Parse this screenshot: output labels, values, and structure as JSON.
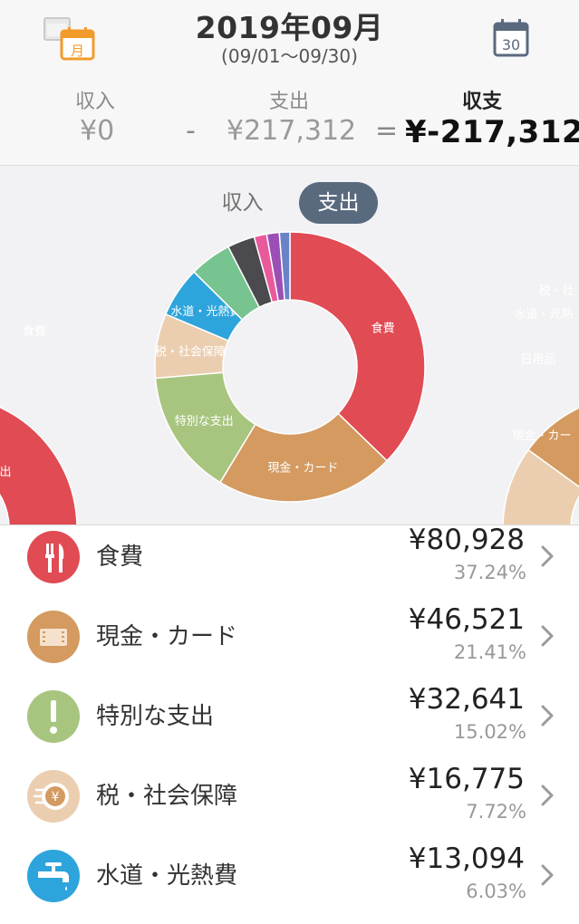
{
  "header": {
    "title": "2019年09月",
    "range": "(09/01〜09/30)",
    "month_icon_label": "月",
    "day_icon_label": "30"
  },
  "summary": {
    "income_label": "収入",
    "income_value": "¥0",
    "minus": "-",
    "expense_label": "支出",
    "expense_value": "¥217,312",
    "equals": "=",
    "balance_label": "収支",
    "balance_value": "¥-217,312"
  },
  "toggle": {
    "income": "収入",
    "expense": "支出"
  },
  "chart_data": {
    "type": "pie",
    "donut": true,
    "categories": [
      "食費",
      "現金・カード",
      "特別な支出",
      "税・社会保障",
      "水道・光熱費"
    ],
    "values": [
      80928,
      46521,
      32641,
      16775,
      13094
    ],
    "percentages": [
      37.24,
      21.41,
      15.02,
      7.72,
      6.03
    ],
    "colors": [
      "#e04b54",
      "#d49a60",
      "#a7c57e",
      "#ebceb0",
      "#2ea4dc"
    ],
    "other_slice_colors": [
      "#78c491",
      "#4a4a4f",
      "#e85a9b",
      "#9b4fb5",
      "#6b82c7"
    ],
    "side_labels_left": [
      "食費",
      "出"
    ],
    "side_labels_right": [
      "税・社",
      "水道・光熱",
      "日用品",
      "現金・カー"
    ]
  },
  "list": {
    "items": [
      {
        "name": "食費",
        "amount": "¥80,928",
        "percent": "37.24%",
        "color": "#e04b54",
        "icon": "fork-knife-icon"
      },
      {
        "name": "現金・カード",
        "amount": "¥46,521",
        "percent": "21.41%",
        "color": "#d49a60",
        "icon": "film-card-icon"
      },
      {
        "name": "特別な支出",
        "amount": "¥32,641",
        "percent": "15.02%",
        "color": "#a7c57e",
        "icon": "exclamation-icon"
      },
      {
        "name": "税・社会保障",
        "amount": "¥16,775",
        "percent": "7.72%",
        "color": "#ebceb0",
        "icon": "yen-coin-icon"
      },
      {
        "name": "水道・光熱費",
        "amount": "¥13,094",
        "percent": "6.03%",
        "color": "#2ea4dc",
        "icon": "faucet-icon"
      }
    ]
  }
}
